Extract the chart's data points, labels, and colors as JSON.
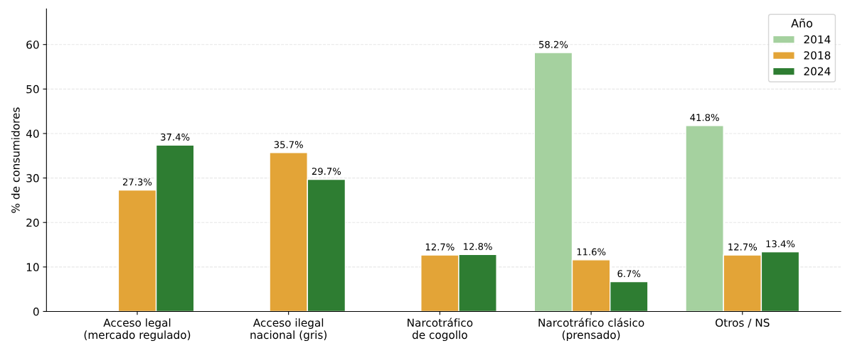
{
  "chart_data": {
    "type": "bar",
    "ylabel": "% de consumidores",
    "legend_title": "Año",
    "legend": "top right",
    "grid": "y",
    "categories": [
      "Acceso legal\n(mercado regulado)",
      "Acceso ilegal\nnacional (gris)",
      "Narcotráfico\nde cogollo",
      "Narcotráfico clásico\n(prensado)",
      "Otros / NS"
    ],
    "ylim": [
      0,
      68
    ],
    "yticks": [
      0,
      10,
      20,
      30,
      40,
      50,
      60
    ],
    "series": [
      {
        "name": "2014",
        "color": "#a5d19f",
        "values": [
          null,
          null,
          null,
          58.2,
          41.8
        ],
        "value_labels": [
          null,
          null,
          null,
          "58.2%",
          "41.8%"
        ]
      },
      {
        "name": "2018",
        "color": "#e3a437",
        "values": [
          27.3,
          35.7,
          12.7,
          11.6,
          12.7
        ],
        "value_labels": [
          "27.3%",
          "35.7%",
          "12.7%",
          "11.6%",
          "12.7%"
        ]
      },
      {
        "name": "2024",
        "color": "#2e7d32",
        "values": [
          37.4,
          29.7,
          12.8,
          6.7,
          13.4
        ],
        "value_labels": [
          "37.4%",
          "29.7%",
          "12.8%",
          "6.7%",
          "13.4%"
        ]
      }
    ]
  }
}
